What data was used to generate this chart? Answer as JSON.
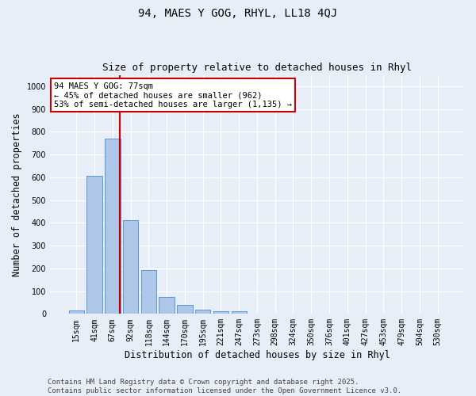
{
  "title1": "94, MAES Y GOG, RHYL, LL18 4QJ",
  "title2": "Size of property relative to detached houses in Rhyl",
  "xlabel": "Distribution of detached houses by size in Rhyl",
  "ylabel": "Number of detached properties",
  "categories": [
    "15sqm",
    "41sqm",
    "67sqm",
    "92sqm",
    "118sqm",
    "144sqm",
    "170sqm",
    "195sqm",
    "221sqm",
    "247sqm",
    "273sqm",
    "298sqm",
    "324sqm",
    "350sqm",
    "376sqm",
    "401sqm",
    "427sqm",
    "453sqm",
    "479sqm",
    "504sqm",
    "530sqm"
  ],
  "values": [
    15,
    607,
    770,
    413,
    193,
    75,
    38,
    18,
    10,
    12,
    0,
    0,
    0,
    0,
    0,
    0,
    0,
    0,
    0,
    0,
    0
  ],
  "bar_color": "#aec6e8",
  "bar_edge_color": "#5b9bd5",
  "annotation_line1": "94 MAES Y GOG: 77sqm",
  "annotation_line2": "← 45% of detached houses are smaller (962)",
  "annotation_line3": "53% of semi-detached houses are larger (1,135) →",
  "annotation_box_color": "#ffffff",
  "annotation_edge_color": "#cc0000",
  "vline_x": 2.4,
  "vline_color": "#cc0000",
  "ylim": [
    0,
    1050
  ],
  "yticks": [
    0,
    100,
    200,
    300,
    400,
    500,
    600,
    700,
    800,
    900,
    1000
  ],
  "background_color": "#e8eef8",
  "grid_color": "#ffffff",
  "footer_text": "Contains HM Land Registry data © Crown copyright and database right 2025.\nContains public sector information licensed under the Open Government Licence v3.0.",
  "title1_fontsize": 10,
  "title2_fontsize": 9,
  "xlabel_fontsize": 8.5,
  "ylabel_fontsize": 8.5,
  "tick_fontsize": 7,
  "annotation_fontsize": 7.5,
  "footer_fontsize": 6.5
}
